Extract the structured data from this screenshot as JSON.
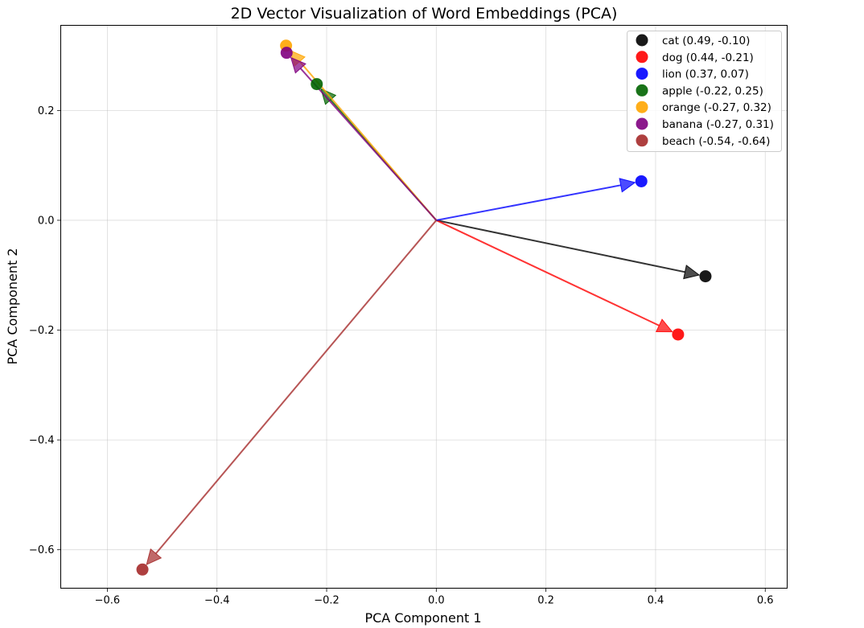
{
  "chart_data": {
    "type": "scatter",
    "subtype": "vector-arrows-from-origin",
    "title": "2D Vector Visualization of Word Embeddings (PCA)",
    "xlabel": "PCA Component 1",
    "ylabel": "PCA Component 2",
    "xlim": [
      -0.685,
      0.64
    ],
    "ylim": [
      -0.67,
      0.355
    ],
    "xticks": [
      -0.6,
      -0.4,
      -0.2,
      0.0,
      0.2,
      0.4,
      0.6
    ],
    "xtick_labels": [
      "−0.6",
      "−0.4",
      "−0.2",
      "0.0",
      "0.2",
      "0.4",
      "0.6"
    ],
    "yticks": [
      -0.6,
      -0.4,
      -0.2,
      0.0,
      0.2
    ],
    "ytick_labels": [
      "−0.6",
      "−0.4",
      "−0.2",
      "0.0",
      "0.2"
    ],
    "grid": true,
    "legend_position": "top-right",
    "origin": [
      0,
      0
    ],
    "series": [
      {
        "name": "cat (0.49, -0.10)",
        "x": 0.491,
        "y": -0.102,
        "color": "#000000"
      },
      {
        "name": "dog (0.44, -0.21)",
        "x": 0.441,
        "y": -0.208,
        "color": "#ff0000"
      },
      {
        "name": "lion (0.37, 0.07)",
        "x": 0.374,
        "y": 0.071,
        "color": "#0000ff"
      },
      {
        "name": "apple (-0.22, 0.25)",
        "x": -0.218,
        "y": 0.248,
        "color": "#006400"
      },
      {
        "name": "orange (-0.27, 0.32)",
        "x": -0.274,
        "y": 0.318,
        "color": "#ffa500"
      },
      {
        "name": "banana (-0.27, 0.31)",
        "x": -0.273,
        "y": 0.305,
        "color": "#800080"
      },
      {
        "name": "beach (-0.54, -0.64)",
        "x": -0.536,
        "y": -0.636,
        "color": "#a52a2a"
      }
    ]
  }
}
